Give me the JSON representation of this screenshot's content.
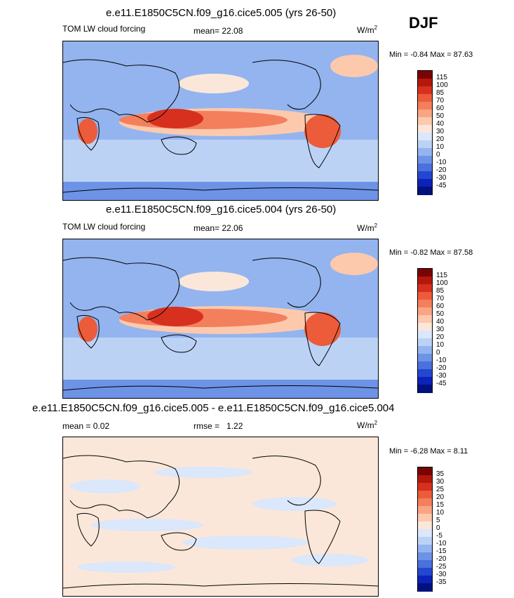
{
  "season": "DJF",
  "panels": [
    {
      "title": "e.e11.E1850C5CN.f09_g16.cice5.005 (yrs 26-50)",
      "left_label": "TOM LW cloud forcing",
      "stat_label": "mean=",
      "stat_value": "22.08",
      "units": "W/m",
      "units_exp": "2",
      "minmax": "Min =  -0.84 Max =  87.63"
    },
    {
      "title": "e.e11.E1850C5CN.f09_g16.cice5.004 (yrs 26-50)",
      "left_label": "TOM LW cloud forcing",
      "stat_label": "mean=",
      "stat_value": "22.06",
      "units": "W/m",
      "units_exp": "2",
      "minmax": "Min =  -0.82 Max =  87.58"
    },
    {
      "title": "e.e11.E1850C5CN.f09_g16.cice5.005 - e.e11.E1850C5CN.f09_g16.cice5.004",
      "left_label": "mean =   0.02",
      "stat_label": "rmse =",
      "stat_value": "1.22",
      "units": "W/m",
      "units_exp": "2",
      "minmax": "Min =  -6.28 Max =   8.11"
    }
  ],
  "chart_data": [
    {
      "type": "heatmap",
      "title": "e.e11.E1850C5CN.f09_g16.cice5.005 (yrs 26-50)",
      "variable": "TOM LW cloud forcing",
      "units": "W/m2",
      "mean": 22.08,
      "min": -0.84,
      "max": 87.63,
      "colorbar_labels": [
        "115",
        "100",
        "85",
        "70",
        "60",
        "50",
        "40",
        "30",
        "20",
        "10",
        "0",
        "-10",
        "-20",
        "-30",
        "-45"
      ],
      "colorbar_colors": [
        "#7a0403",
        "#b2180e",
        "#d7301f",
        "#ec5b3a",
        "#f47f5c",
        "#f9a585",
        "#fcc9ad",
        "#fbe7d9",
        "#dbe7fa",
        "#bcd2f5",
        "#93b4ef",
        "#6d93e6",
        "#4a71dc",
        "#2447cf",
        "#0c22b8",
        "#01127e"
      ]
    },
    {
      "type": "heatmap",
      "title": "e.e11.E1850C5CN.f09_g16.cice5.004 (yrs 26-50)",
      "variable": "TOM LW cloud forcing",
      "units": "W/m2",
      "mean": 22.06,
      "min": -0.82,
      "max": 87.58,
      "colorbar_labels": [
        "115",
        "100",
        "85",
        "70",
        "60",
        "50",
        "40",
        "30",
        "20",
        "10",
        "0",
        "-10",
        "-20",
        "-30",
        "-45"
      ],
      "colorbar_colors": [
        "#7a0403",
        "#b2180e",
        "#d7301f",
        "#ec5b3a",
        "#f47f5c",
        "#f9a585",
        "#fcc9ad",
        "#fbe7d9",
        "#dbe7fa",
        "#bcd2f5",
        "#93b4ef",
        "#6d93e6",
        "#4a71dc",
        "#2447cf",
        "#0c22b8",
        "#01127e"
      ]
    },
    {
      "type": "heatmap",
      "title": "e.e11.E1850C5CN.f09_g16.cice5.005 - e.e11.E1850C5CN.f09_g16.cice5.004",
      "units": "W/m2",
      "mean": 0.02,
      "rmse": 1.22,
      "min": -6.28,
      "max": 8.11,
      "colorbar_labels": [
        "35",
        "30",
        "25",
        "20",
        "15",
        "10",
        "5",
        "0",
        "-5",
        "-10",
        "-15",
        "-20",
        "-25",
        "-30",
        "-35"
      ],
      "colorbar_colors": [
        "#7a0403",
        "#b2180e",
        "#d7301f",
        "#ec5b3a",
        "#f47f5c",
        "#f9a585",
        "#fcc9ad",
        "#fbe7d9",
        "#dbe7fa",
        "#bcd2f5",
        "#93b4ef",
        "#6d93e6",
        "#4a71dc",
        "#2447cf",
        "#0c22b8",
        "#01127e"
      ]
    }
  ]
}
